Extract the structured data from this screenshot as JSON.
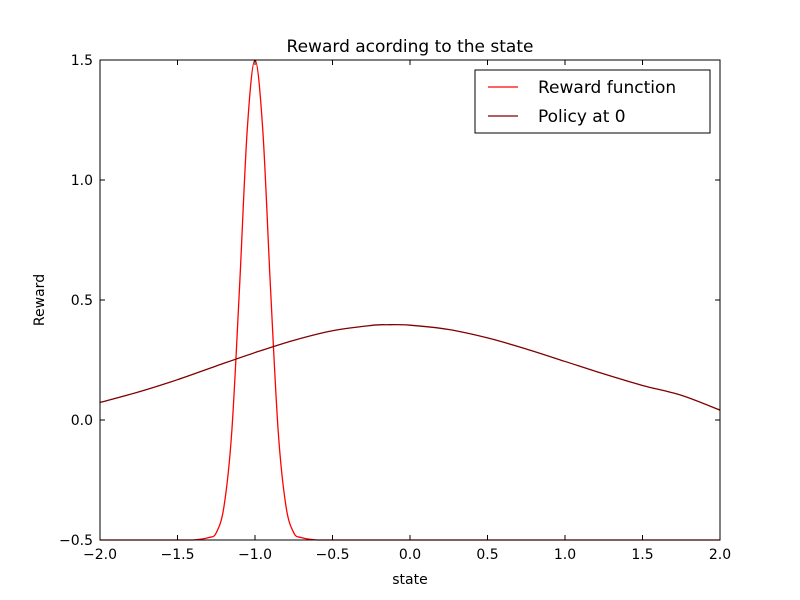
{
  "chart_data": {
    "type": "line",
    "title": "Reward acording to the state",
    "xlabel": "state",
    "ylabel": "Reward",
    "xlim": [
      -2.0,
      2.0
    ],
    "ylim": [
      -0.5,
      1.5
    ],
    "xticks": [
      -2.0,
      -1.5,
      -1.0,
      -0.5,
      0.0,
      0.5,
      1.0,
      1.5,
      2.0
    ],
    "xtick_labels": [
      "−2.0",
      "−1.5",
      "−1.0",
      "−0.5",
      "0.0",
      "0.5",
      "1.0",
      "1.5",
      "2.0"
    ],
    "yticks": [
      -0.5,
      0.0,
      0.5,
      1.0,
      1.5
    ],
    "ytick_labels": [
      "−0.5",
      "0.0",
      "0.5",
      "1.0",
      "1.5"
    ],
    "grid": false,
    "legend_position": "top-right",
    "series": [
      {
        "name": "Reward function",
        "color": "#ff0000",
        "x": [
          -2.0,
          -1.5,
          -1.4,
          -1.3,
          -1.25,
          -1.2,
          -1.15,
          -1.1,
          -1.05,
          -1.0,
          -0.95,
          -0.9,
          -0.85,
          -0.8,
          -0.75,
          -0.7,
          -0.6,
          -0.5,
          0.0,
          0.5,
          1.0,
          1.5,
          2.0
        ],
        "y": [
          -0.5,
          -0.5,
          -0.5,
          -0.49,
          -0.47,
          -0.36,
          -0.05,
          0.55,
          1.21,
          1.5,
          1.21,
          0.55,
          -0.05,
          -0.36,
          -0.47,
          -0.49,
          -0.5,
          -0.5,
          -0.5,
          -0.5,
          -0.5,
          -0.5,
          -0.5
        ]
      },
      {
        "name": "Policy at 0",
        "color": "#800000",
        "x": [
          -2.0,
          -1.75,
          -1.5,
          -1.25,
          -1.0,
          -0.75,
          -0.5,
          -0.25,
          -0.15,
          0.0,
          0.25,
          0.5,
          0.75,
          1.0,
          1.25,
          1.5,
          1.75,
          2.0
        ],
        "y": [
          0.073,
          0.117,
          0.168,
          0.225,
          0.281,
          0.332,
          0.372,
          0.394,
          0.397,
          0.395,
          0.377,
          0.342,
          0.296,
          0.244,
          0.192,
          0.144,
          0.103,
          0.041
        ]
      }
    ]
  }
}
